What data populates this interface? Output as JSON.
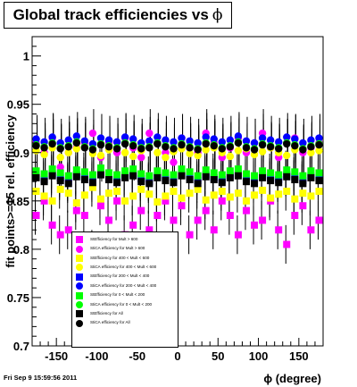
{
  "title": {
    "text": "Global track efficiencies vs",
    "symbol": "ϕ"
  },
  "timestamp": "Fri Sep  9 15:59:56 2011",
  "chart_data": {
    "type": "scatter",
    "title": "Global track efficiencies vs ϕ",
    "xlabel": "ϕ (degree)",
    "ylabel": "fit points>=15 rel. efficiency",
    "xlim": [
      -180,
      180
    ],
    "ylim": [
      0.7,
      1.02
    ],
    "xticks": [
      -150,
      -100,
      -50,
      0,
      50,
      100,
      150
    ],
    "yticks": [
      0.7,
      0.75,
      0.8,
      0.85,
      0.9,
      0.95,
      1.0
    ],
    "grid": false,
    "legend_position": "bottom-left",
    "x": [
      -175,
      -165,
      -155,
      -145,
      -135,
      -125,
      -115,
      -105,
      -95,
      -85,
      -75,
      -65,
      -55,
      -45,
      -35,
      -25,
      -15,
      -5,
      5,
      15,
      25,
      35,
      45,
      55,
      65,
      75,
      85,
      95,
      105,
      115,
      125,
      135,
      145,
      155,
      165,
      175
    ],
    "series": [
      {
        "name": "StEfficiency  for Mult > 600",
        "marker": "square",
        "color": "#ff00ff",
        "values": [
          0.835,
          0.85,
          0.825,
          0.815,
          0.82,
          0.84,
          0.835,
          0.8,
          0.845,
          0.83,
          0.85,
          0.815,
          0.825,
          0.84,
          0.82,
          0.835,
          0.85,
          0.83,
          0.845,
          0.815,
          0.83,
          0.84,
          0.82,
          0.85,
          0.835,
          0.815,
          0.84,
          0.825,
          0.83,
          0.85,
          0.82,
          0.805,
          0.835,
          0.845,
          0.82,
          0.83
        ]
      },
      {
        "name": "StiCA efficiency  for Mult > 600",
        "marker": "circle",
        "color": "#ff00ff",
        "values": [
          0.91,
          0.9,
          0.915,
          0.885,
          0.9,
          0.905,
          0.91,
          0.92,
          0.895,
          0.91,
          0.9,
          0.915,
          0.905,
          0.895,
          0.92,
          0.91,
          0.9,
          0.89,
          0.915,
          0.905,
          0.9,
          0.92,
          0.91,
          0.895,
          0.905,
          0.915,
          0.9,
          0.91,
          0.92,
          0.905,
          0.895,
          0.91,
          0.915,
          0.9,
          0.905,
          0.91
        ]
      },
      {
        "name": "StEfficiency  for 400 < Mult < 600",
        "marker": "square",
        "color": "#ffff00",
        "values": [
          0.86,
          0.855,
          0.85,
          0.862,
          0.858,
          0.848,
          0.856,
          0.864,
          0.852,
          0.858,
          0.86,
          0.85,
          0.855,
          0.862,
          0.857,
          0.849,
          0.855,
          0.86,
          0.853,
          0.858,
          0.862,
          0.851,
          0.856,
          0.86,
          0.854,
          0.858,
          0.85,
          0.856,
          0.861,
          0.853,
          0.857,
          0.86,
          0.852,
          0.858,
          0.855,
          0.86
        ]
      },
      {
        "name": "StiCA efficiency  for 400 < Mult < 600",
        "marker": "circle",
        "color": "#ffff00",
        "values": [
          0.902,
          0.898,
          0.905,
          0.895,
          0.9,
          0.904,
          0.906,
          0.899,
          0.897,
          0.903,
          0.905,
          0.9,
          0.896,
          0.902,
          0.906,
          0.9,
          0.895,
          0.901,
          0.904,
          0.899,
          0.897,
          0.903,
          0.905,
          0.9,
          0.896,
          0.902,
          0.904,
          0.898,
          0.901,
          0.905,
          0.9,
          0.897,
          0.903,
          0.904,
          0.9,
          0.902
        ]
      },
      {
        "name": "StEfficiency  for 200 < Mult < 400",
        "marker": "square",
        "color": "#0000ff",
        "values": [
          0.876,
          0.872,
          0.878,
          0.874,
          0.87,
          0.877,
          0.875,
          0.871,
          0.879,
          0.874,
          0.872,
          0.876,
          0.878,
          0.873,
          0.87,
          0.876,
          0.874,
          0.872,
          0.878,
          0.875,
          0.871,
          0.877,
          0.874,
          0.872,
          0.876,
          0.878,
          0.873,
          0.871,
          0.876,
          0.874,
          0.872,
          0.877,
          0.875,
          0.871,
          0.876,
          0.874
        ]
      },
      {
        "name": "StiCA efficiency  for 200 < Mult < 400",
        "marker": "circle",
        "color": "#0000ff",
        "values": [
          0.914,
          0.911,
          0.916,
          0.91,
          0.913,
          0.917,
          0.912,
          0.909,
          0.915,
          0.913,
          0.911,
          0.916,
          0.914,
          0.91,
          0.912,
          0.916,
          0.913,
          0.911,
          0.915,
          0.912,
          0.91,
          0.916,
          0.914,
          0.911,
          0.913,
          0.917,
          0.912,
          0.91,
          0.915,
          0.913,
          0.911,
          0.916,
          0.914,
          0.91,
          0.913,
          0.915
        ]
      },
      {
        "name": "StEfficiency  for 0 < Mult < 200",
        "marker": "square",
        "color": "#00ff00",
        "values": [
          0.881,
          0.878,
          0.883,
          0.879,
          0.876,
          0.882,
          0.88,
          0.877,
          0.884,
          0.879,
          0.877,
          0.881,
          0.883,
          0.878,
          0.876,
          0.881,
          0.879,
          0.877,
          0.883,
          0.88,
          0.876,
          0.882,
          0.879,
          0.877,
          0.881,
          0.883,
          0.878,
          0.876,
          0.881,
          0.879,
          0.877,
          0.882,
          0.88,
          0.876,
          0.881,
          0.879
        ]
      },
      {
        "name": "StiCA efficiency  for 0 < Mult < 200",
        "marker": "circle",
        "color": "#00ff00",
        "values": [
          0.908,
          0.906,
          0.91,
          0.905,
          0.907,
          0.911,
          0.906,
          0.904,
          0.909,
          0.907,
          0.905,
          0.91,
          0.908,
          0.905,
          0.906,
          0.91,
          0.907,
          0.905,
          0.909,
          0.906,
          0.904,
          0.91,
          0.908,
          0.905,
          0.907,
          0.911,
          0.906,
          0.904,
          0.909,
          0.907,
          0.905,
          0.91,
          0.908,
          0.904,
          0.907,
          0.909
        ]
      },
      {
        "name": "StEfficiency  for All",
        "marker": "square",
        "color": "#000000",
        "values": [
          0.874,
          0.87,
          0.876,
          0.871,
          0.868,
          0.875,
          0.872,
          0.869,
          0.877,
          0.872,
          0.869,
          0.874,
          0.876,
          0.87,
          0.868,
          0.874,
          0.871,
          0.869,
          0.876,
          0.872,
          0.868,
          0.875,
          0.872,
          0.869,
          0.874,
          0.876,
          0.87,
          0.868,
          0.874,
          0.871,
          0.869,
          0.875,
          0.872,
          0.868,
          0.874,
          0.871
        ]
      },
      {
        "name": "StiCA efficiency  for All",
        "marker": "circle",
        "color": "#000000",
        "values": [
          0.907,
          0.905,
          0.909,
          0.904,
          0.906,
          0.91,
          0.905,
          0.903,
          0.908,
          0.906,
          0.904,
          0.909,
          0.907,
          0.904,
          0.905,
          0.909,
          0.906,
          0.904,
          0.908,
          0.905,
          0.903,
          0.909,
          0.907,
          0.904,
          0.906,
          0.91,
          0.905,
          0.903,
          0.908,
          0.906,
          0.904,
          0.909,
          0.907,
          0.903,
          0.906,
          0.908
        ]
      }
    ]
  }
}
